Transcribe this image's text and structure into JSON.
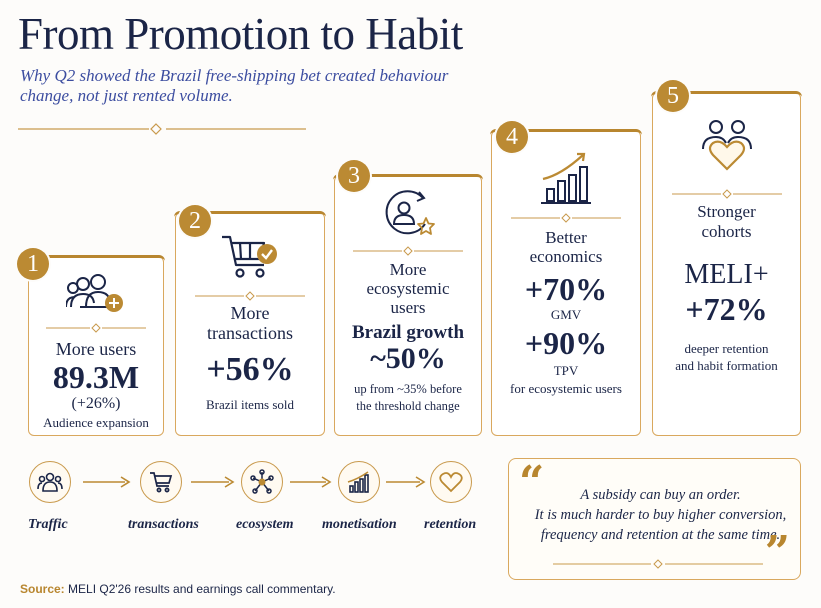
{
  "header": {
    "title": "From Promotion to Habit",
    "subtitle": "Why Q2 showed the Brazil free-shipping bet created behaviour change, not just rented volume."
  },
  "steps": [
    {
      "number": "1",
      "icon": "users-add-icon",
      "title": "More users",
      "metric": "89.3M",
      "metric_sub": "(+26%)",
      "caption": "Audience expansion"
    },
    {
      "number": "2",
      "icon": "shopping-cart-check-icon",
      "title_line1": "More",
      "title_line2": "transactions",
      "metric": "+56%",
      "caption": "Brazil items sold"
    },
    {
      "number": "3",
      "icon": "user-star-cycle-icon",
      "title_line1": "More",
      "title_line2": "ecosystemic",
      "title_line3": "users",
      "metric_label": "Brazil growth",
      "metric": "~50%",
      "caption_line1": "up from ~35% before",
      "caption_line2": "the threshold change"
    },
    {
      "number": "4",
      "icon": "bar-chart-growth-icon",
      "title_line1": "Better",
      "title_line2": "economics",
      "metric1": "+70%",
      "metric1_label": "GMV",
      "metric2": "+90%",
      "metric2_label": "TPV",
      "caption": "for ecosystemic users"
    },
    {
      "number": "5",
      "icon": "people-heart-icon",
      "title_line1": "Stronger",
      "title_line2": "cohorts",
      "metric_line1": "MELI+",
      "metric_line2": "+72%",
      "caption_line1": "deeper retention",
      "caption_line2": "and habit formation"
    }
  ],
  "flow": [
    {
      "label": "Traffic",
      "icon": "users-icon"
    },
    {
      "label": "transactions",
      "icon": "cart-icon"
    },
    {
      "label": "ecosystem",
      "icon": "network-icon"
    },
    {
      "label": "monetisation",
      "icon": "bar-chart-icon"
    },
    {
      "label": "retention",
      "icon": "heart-icon"
    }
  ],
  "quote": {
    "line1": "A subsidy can buy an order.",
    "line2": "It is much harder to buy higher conversion,",
    "line3": "frequency and retention at the same time."
  },
  "footer": {
    "source_label": "Source:",
    "source_text": "MELI Q2'26 results and earnings call commentary."
  },
  "colors": {
    "navy": "#1b2547",
    "gold": "#b8862f",
    "subtitle_blue": "#3c4da0",
    "card_border": "#d9a85e"
  }
}
